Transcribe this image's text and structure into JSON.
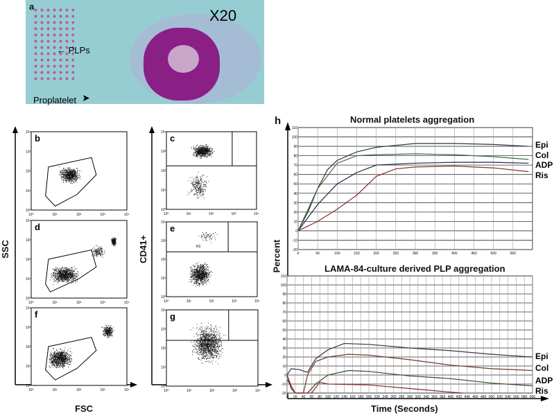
{
  "panel_a": {
    "letter": "a",
    "magnification": "X20",
    "plps_label": "PLPs",
    "proplatelet_label": "Proplatelet"
  },
  "flow": {
    "ssc_label": "SSC",
    "fsc_label": "FSC",
    "cd41_label": "CD41+",
    "panels": [
      "b",
      "c",
      "d",
      "e",
      "f",
      "g"
    ],
    "ticks": [
      "10⁰",
      "10¹",
      "10²",
      "10³",
      "10⁴"
    ],
    "gate_label": "R2"
  },
  "panel_h_letter": "h",
  "percent_label": "Percent",
  "time_label": "Time (Seconds)",
  "chart_data": [
    {
      "type": "line",
      "title": "Normal platelets aggregation",
      "ylim": [
        -20,
        110
      ],
      "xlim": [
        0,
        600
      ],
      "xticks": [
        0,
        50,
        100,
        150,
        200,
        250,
        300,
        350,
        400,
        450,
        500,
        550
      ],
      "yticks": [
        -20,
        -10,
        0,
        10,
        20,
        30,
        40,
        50,
        60,
        70,
        80,
        90,
        100,
        110
      ],
      "series": [
        {
          "name": "Epi",
          "color": "#333333",
          "x": [
            0,
            25,
            50,
            75,
            100,
            150,
            200,
            300,
            400,
            500,
            590
          ],
          "y": [
            0,
            20,
            45,
            65,
            75,
            84,
            89,
            93,
            93,
            92,
            90
          ]
        },
        {
          "name": "Col",
          "color": "#3d6b3d",
          "x": [
            0,
            50,
            100,
            150,
            200,
            300,
            400,
            500,
            590
          ],
          "y": [
            0,
            45,
            72,
            80,
            81,
            82,
            81,
            79,
            76
          ]
        },
        {
          "name": "ADP",
          "color": "#222244",
          "x": [
            0,
            50,
            100,
            150,
            200,
            300,
            400,
            500,
            590
          ],
          "y": [
            0,
            28,
            50,
            62,
            70,
            72,
            73,
            73,
            72
          ]
        },
        {
          "name": "Ris",
          "color": "#8b2a2a",
          "x": [
            0,
            50,
            100,
            150,
            200,
            250,
            300,
            400,
            500,
            590
          ],
          "y": [
            0,
            10,
            23,
            38,
            58,
            66,
            68,
            69,
            67,
            63
          ]
        }
      ]
    },
    {
      "type": "line",
      "title": "LAMA-84-culture derived PLP aggregation",
      "ylim": [
        -20,
        110
      ],
      "xlim": [
        0,
        600
      ],
      "xticks": [
        0,
        20,
        40,
        60,
        80,
        100,
        120,
        140,
        160,
        180,
        200,
        220,
        240,
        260,
        280,
        300,
        320,
        340,
        360,
        380,
        400,
        420,
        440,
        460,
        480,
        500,
        520,
        540,
        560,
        580,
        600
      ],
      "yticks": [
        -20,
        -10,
        0,
        10,
        20,
        30,
        40,
        50,
        60,
        70,
        80,
        90,
        100,
        110
      ],
      "series": [
        {
          "name": "Epi",
          "color": "#333344",
          "x": [
            0,
            10,
            30,
            50,
            70,
            100,
            140,
            200,
            300,
            400,
            500,
            600
          ],
          "y": [
            0,
            7,
            6,
            3,
            18,
            28,
            35,
            34,
            30,
            27,
            23,
            20
          ]
        },
        {
          "name": "Col",
          "color": "#6b3a2a",
          "x": [
            0,
            10,
            20,
            40,
            50,
            70,
            100,
            150,
            200,
            300,
            400,
            500,
            600
          ],
          "y": [
            0,
            -15,
            -20,
            -20,
            0,
            15,
            20,
            23,
            22,
            17,
            11,
            7,
            5
          ]
        },
        {
          "name": "ADP",
          "color": "#2d4a2d",
          "x": [
            0,
            20,
            50,
            70,
            100,
            150,
            200,
            300,
            400,
            500,
            600
          ],
          "y": [
            -5,
            -20,
            -20,
            -10,
            0,
            5,
            4,
            -1,
            -4,
            -9,
            -12
          ]
        },
        {
          "name": "Ris",
          "color": "#8b2a2a",
          "x": [
            0,
            10,
            20,
            60,
            80,
            100,
            200,
            300,
            400,
            430
          ],
          "y": [
            0,
            -12,
            -20,
            -20,
            -8,
            -10,
            -11,
            -15,
            -19,
            -20
          ]
        }
      ]
    }
  ]
}
